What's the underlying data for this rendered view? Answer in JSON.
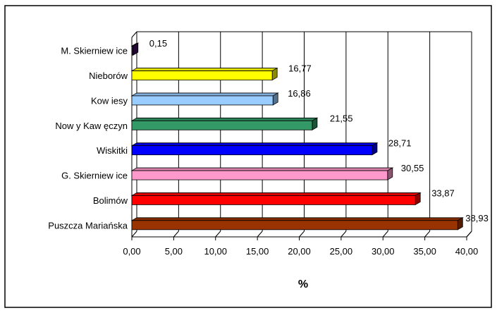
{
  "chart_data": {
    "type": "bar",
    "orientation": "horizontal",
    "style": "3d",
    "categories": [
      "M. Skierniew ice",
      "Nieborów",
      "Kow iesy",
      "Now y Kaw ęczyn",
      "Wiskitki",
      "G. Skierniew ice",
      "Bolimów",
      "Puszcza Mariańska"
    ],
    "values": [
      0.15,
      16.77,
      16.86,
      21.55,
      28.71,
      30.55,
      33.87,
      38.93
    ],
    "value_labels": [
      "0,15",
      "16,77",
      "16,86",
      "21,55",
      "28,71",
      "30,55",
      "33,87",
      "38,93"
    ],
    "colors": [
      "#3d0d5c",
      "#ffff00",
      "#99ccff",
      "#339966",
      "#0000ff",
      "#ff99cc",
      "#ff0000",
      "#993300"
    ],
    "xlabel": "%",
    "xlim": [
      0,
      40
    ],
    "xticks": [
      0,
      5,
      10,
      15,
      20,
      25,
      30,
      35,
      40
    ],
    "xtick_labels": [
      "0,00",
      "5,00",
      "10,00",
      "15,00",
      "20,00",
      "25,00",
      "30,00",
      "35,00",
      "40,00"
    ],
    "grid": "vertical",
    "legend": "none"
  }
}
